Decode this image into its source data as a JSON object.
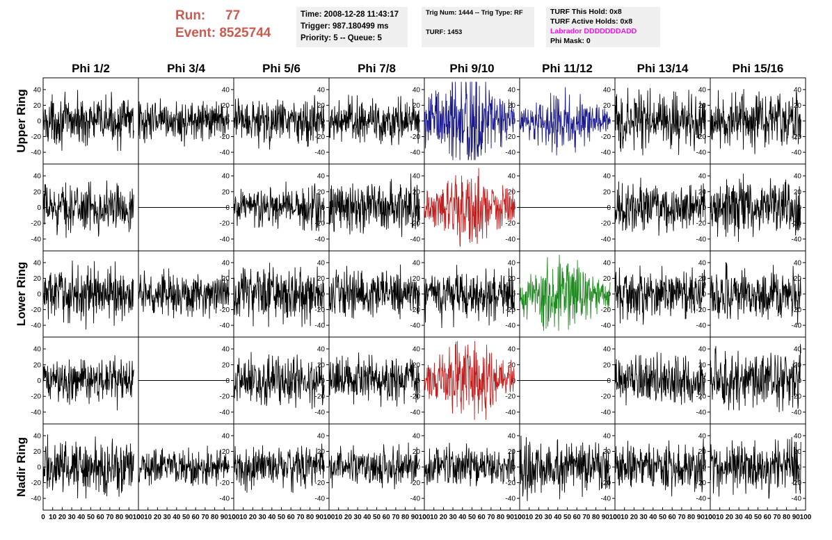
{
  "header": {
    "run_label": "Run:",
    "run_value": "77",
    "event_label": "Event:",
    "event_value": "8525744",
    "time_line": "Time: 2008-12-28 11:43:17",
    "trigger_line": "Trigger: 987.180499 ms",
    "priority_line": "Priority: 5 -- Queue: 5",
    "trig_line": "Trig Num: 1444 -- Trig Type: RF",
    "turf_line": "TURF: 1453",
    "turf_hold_line": "TURF This Hold: 0x8",
    "turf_active_line": "TURF Active Holds: 0x8",
    "labrador_line": "Labrador DDDDDDDADD",
    "phi_mask_line": "Phi Mask: 0"
  },
  "colors": {
    "header_red": "#cc5a50",
    "pane_bg": "#f0f0f0",
    "labrador_magenta": "#ee11ee",
    "trace_default": "#000000",
    "trace_blue": "#1a1a8c",
    "trace_red": "#c02020",
    "trace_green": "#1f8a1f"
  },
  "chart_data": {
    "type": "line",
    "columns": [
      "Phi 1/2",
      "Phi 3/4",
      "Phi 5/6",
      "Phi 7/8",
      "Phi 9/10",
      "Phi 11/12",
      "Phi 13/14",
      "Phi 15/16"
    ],
    "rows": [
      "Upper Ring",
      "",
      "Lower Ring",
      "",
      "Nadir Ring"
    ],
    "xlim": [
      0,
      100
    ],
    "ylim": [
      -55,
      55
    ],
    "x_ticks": [
      0,
      10,
      20,
      30,
      40,
      50,
      60,
      70,
      80,
      90,
      100
    ],
    "y_ticks": [
      -40,
      -20,
      0,
      20,
      40
    ],
    "grid": false,
    "panels": [
      {
        "row": 0,
        "col": 0,
        "amp": 13,
        "color": "black"
      },
      {
        "row": 0,
        "col": 1,
        "amp": 11,
        "color": "black"
      },
      {
        "row": 0,
        "col": 2,
        "amp": 13,
        "color": "black"
      },
      {
        "row": 0,
        "col": 3,
        "amp": 13,
        "color": "black"
      },
      {
        "row": 0,
        "col": 4,
        "amp": 21,
        "color": "blue"
      },
      {
        "row": 0,
        "col": 5,
        "amp": 12,
        "color": "blue"
      },
      {
        "row": 0,
        "col": 6,
        "amp": 16,
        "color": "black"
      },
      {
        "row": 0,
        "col": 7,
        "amp": 15,
        "color": "black"
      },
      {
        "row": 1,
        "col": 0,
        "amp": 13,
        "color": "black"
      },
      {
        "row": 1,
        "col": 1,
        "amp": 0,
        "color": "black"
      },
      {
        "row": 1,
        "col": 2,
        "amp": 12,
        "color": "black"
      },
      {
        "row": 1,
        "col": 3,
        "amp": 14,
        "color": "black"
      },
      {
        "row": 1,
        "col": 4,
        "amp": 16,
        "color": "red"
      },
      {
        "row": 1,
        "col": 5,
        "amp": 0,
        "color": "black"
      },
      {
        "row": 1,
        "col": 6,
        "amp": 13,
        "color": "black"
      },
      {
        "row": 1,
        "col": 7,
        "amp": 15,
        "color": "black"
      },
      {
        "row": 2,
        "col": 0,
        "amp": 15,
        "color": "black"
      },
      {
        "row": 2,
        "col": 1,
        "amp": 12,
        "color": "black"
      },
      {
        "row": 2,
        "col": 2,
        "amp": 15,
        "color": "black"
      },
      {
        "row": 2,
        "col": 3,
        "amp": 13,
        "color": "black"
      },
      {
        "row": 2,
        "col": 4,
        "amp": 14,
        "color": "black"
      },
      {
        "row": 2,
        "col": 5,
        "amp": 16,
        "color": "green"
      },
      {
        "row": 2,
        "col": 6,
        "amp": 14,
        "color": "black"
      },
      {
        "row": 2,
        "col": 7,
        "amp": 14,
        "color": "black"
      },
      {
        "row": 3,
        "col": 0,
        "amp": 12,
        "color": "black"
      },
      {
        "row": 3,
        "col": 1,
        "amp": 0,
        "color": "black"
      },
      {
        "row": 3,
        "col": 2,
        "amp": 13,
        "color": "black"
      },
      {
        "row": 3,
        "col": 3,
        "amp": 13,
        "color": "black"
      },
      {
        "row": 3,
        "col": 4,
        "amp": 17,
        "color": "red"
      },
      {
        "row": 3,
        "col": 5,
        "amp": 0,
        "color": "black"
      },
      {
        "row": 3,
        "col": 6,
        "amp": 13,
        "color": "black"
      },
      {
        "row": 3,
        "col": 7,
        "amp": 16,
        "color": "black"
      },
      {
        "row": 4,
        "col": 0,
        "amp": 15,
        "color": "black"
      },
      {
        "row": 4,
        "col": 1,
        "amp": 10,
        "color": "black"
      },
      {
        "row": 4,
        "col": 2,
        "amp": 12,
        "color": "black"
      },
      {
        "row": 4,
        "col": 3,
        "amp": 11,
        "color": "black"
      },
      {
        "row": 4,
        "col": 4,
        "amp": 11,
        "color": "black"
      },
      {
        "row": 4,
        "col": 5,
        "amp": 16,
        "color": "black"
      },
      {
        "row": 4,
        "col": 6,
        "amp": 13,
        "color": "black"
      },
      {
        "row": 4,
        "col": 7,
        "amp": 15,
        "color": "black"
      }
    ]
  }
}
